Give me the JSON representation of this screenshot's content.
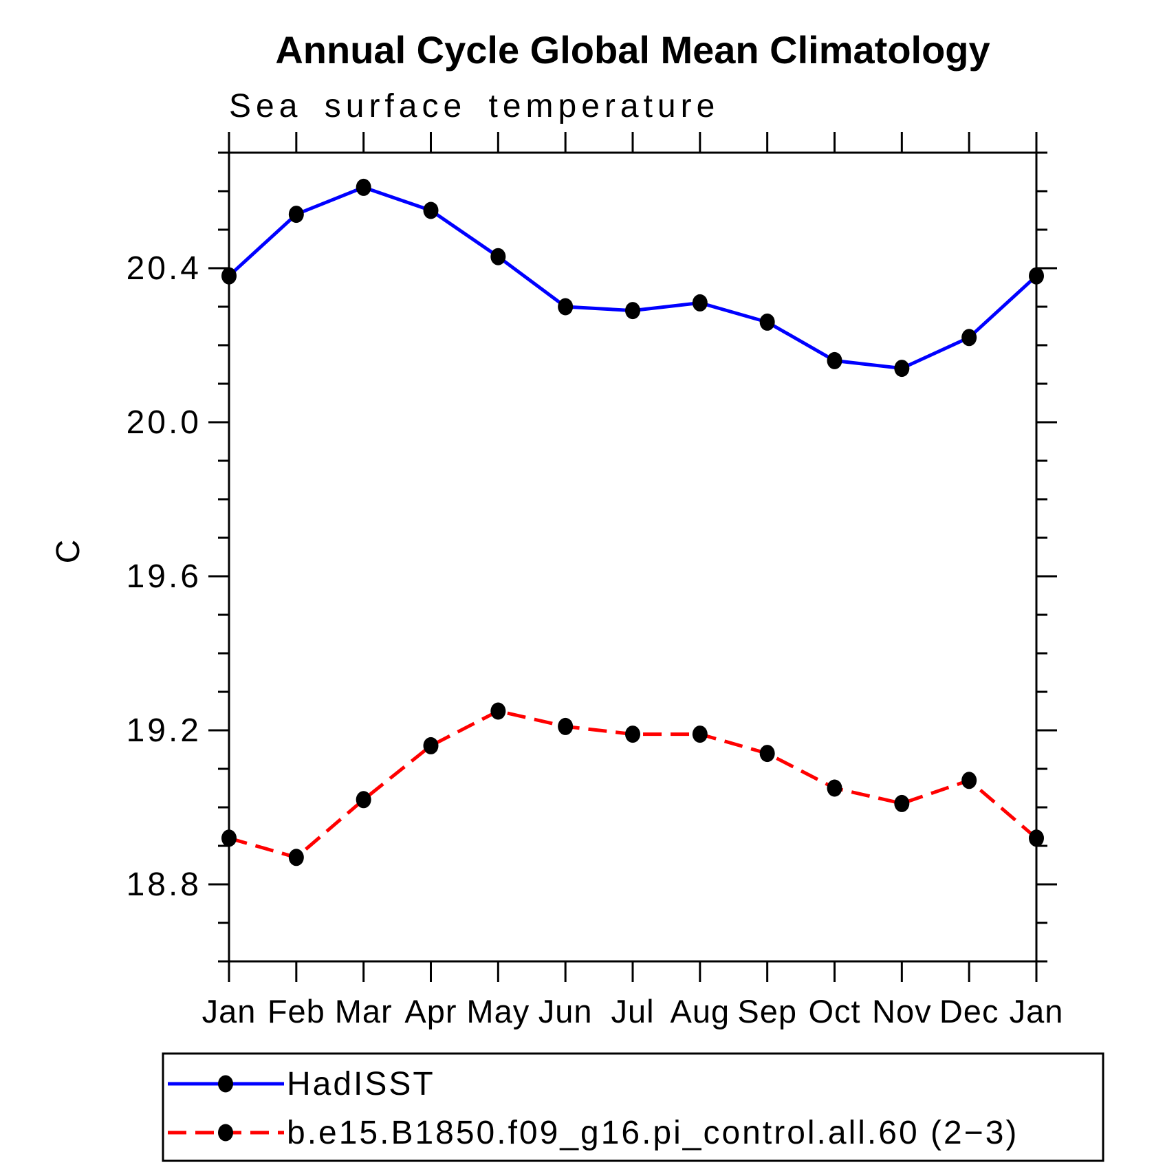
{
  "chart_data": {
    "type": "line",
    "title": "Annual Cycle Global Mean Climatology",
    "subtitle": "Sea surface temperature",
    "xlabel": "",
    "ylabel": "C",
    "categories": [
      "Jan",
      "Feb",
      "Mar",
      "Apr",
      "May",
      "Jun",
      "Jul",
      "Aug",
      "Sep",
      "Oct",
      "Nov",
      "Dec",
      "Jan"
    ],
    "series": [
      {
        "name": "HadISST",
        "color": "#0000ff",
        "line_style": "solid",
        "marker": "filled-circle",
        "marker_color": "#000000",
        "values": [
          20.38,
          20.54,
          20.61,
          20.55,
          20.43,
          20.3,
          20.29,
          20.31,
          20.26,
          20.16,
          20.14,
          20.22,
          20.38
        ]
      },
      {
        "name": "b.e15.B1850.f09_g16.pi_control.all.60 (2−3)",
        "color": "#ff0000",
        "line_style": "dashed",
        "marker": "filled-circle",
        "marker_color": "#000000",
        "values": [
          18.92,
          18.87,
          19.02,
          19.16,
          19.25,
          19.21,
          19.19,
          19.19,
          19.14,
          19.05,
          19.01,
          19.07,
          18.92
        ]
      }
    ],
    "ylim": [
      18.6,
      20.7
    ],
    "y_major_ticks": [
      18.8,
      19.2,
      19.6,
      20.0,
      20.4
    ],
    "y_tick_labels": [
      "18.8",
      "19.2",
      "19.6",
      "20.0",
      "20.4"
    ],
    "y_minor_step": 0.1,
    "grid": false,
    "legend_position": "bottom",
    "axis_color": "#000000",
    "background_color": "#ffffff"
  }
}
